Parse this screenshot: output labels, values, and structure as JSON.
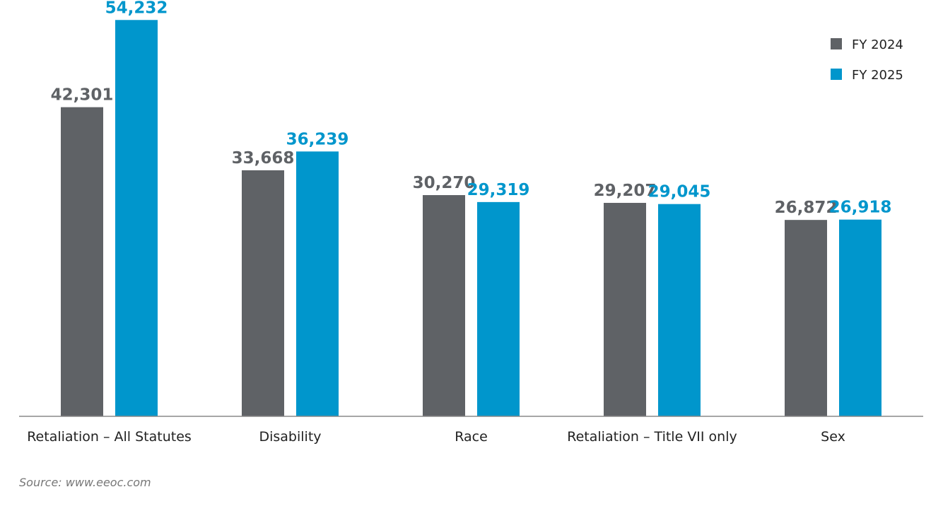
{
  "chart_data": {
    "type": "bar",
    "categories": [
      "Retaliation – All Statutes",
      "Disability",
      "Race",
      "Retaliation – Title VII only",
      "Sex"
    ],
    "series": [
      {
        "name": "FY 2024",
        "color": "#5f6266",
        "values": [
          42301,
          33668,
          30270,
          29207,
          26872
        ],
        "labels": [
          "42,301",
          "33,668",
          "30,270",
          "29,207",
          "26,872"
        ]
      },
      {
        "name": "FY 2025",
        "color": "#0096cc",
        "values": [
          54232,
          36239,
          29319,
          29045,
          26918
        ],
        "labels": [
          "54,232",
          "36,239",
          "29,319",
          "29,045",
          "26,918"
        ]
      }
    ],
    "ylim": [
      0,
      56000
    ],
    "grid": false,
    "legend_position": "top-right",
    "data_labels": true
  },
  "source": "Source: www.eeoc.com"
}
